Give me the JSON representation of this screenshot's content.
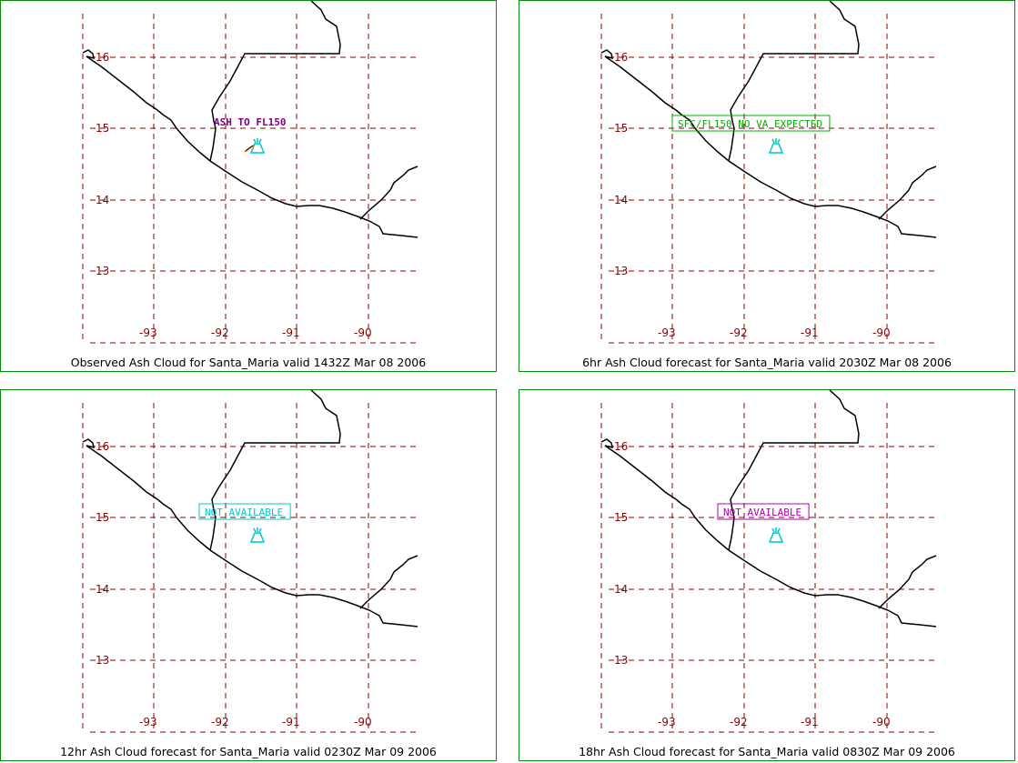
{
  "panels": [
    {
      "caption": "Observed Ash Cloud for Santa_Maria valid 1432Z Mar 08 2006",
      "annotation": {
        "text": "ASH TO FL150",
        "color": "#800080",
        "boxed": false,
        "bold": true
      },
      "show_ash_streak": true
    },
    {
      "caption": "6hr Ash Cloud forecast for Santa_Maria valid 2030Z Mar 08 2006",
      "annotation": {
        "text": "SFC/FL150 NO VA EXPECTED",
        "color": "#00b000",
        "boxed": true,
        "bold": false
      },
      "show_ash_streak": false
    },
    {
      "caption": "12hr Ash Cloud forecast for Santa_Maria valid 0230Z Mar 09 2006",
      "annotation": {
        "text": "NOT AVAILABLE",
        "color": "#00c8c8",
        "boxed": true,
        "bold": false
      },
      "show_ash_streak": false
    },
    {
      "caption": "18hr Ash Cloud forecast for Santa_Maria valid 0830Z Mar 09 2006",
      "annotation": {
        "text": "NOT AVAILABLE",
        "color": "#b000b0",
        "boxed": true,
        "bold": false
      },
      "show_ash_streak": false
    }
  ],
  "latitude_labels": [
    "16",
    "15",
    "14",
    "13"
  ],
  "longitude_labels": [
    "-93",
    "-92",
    "-91",
    "-90"
  ],
  "colors": {
    "grid": "#8b0000",
    "coast": "#000000",
    "volcano": "#00c8c8",
    "frame": "#0a8a0a"
  },
  "volcano_icon": "volcano-icon"
}
